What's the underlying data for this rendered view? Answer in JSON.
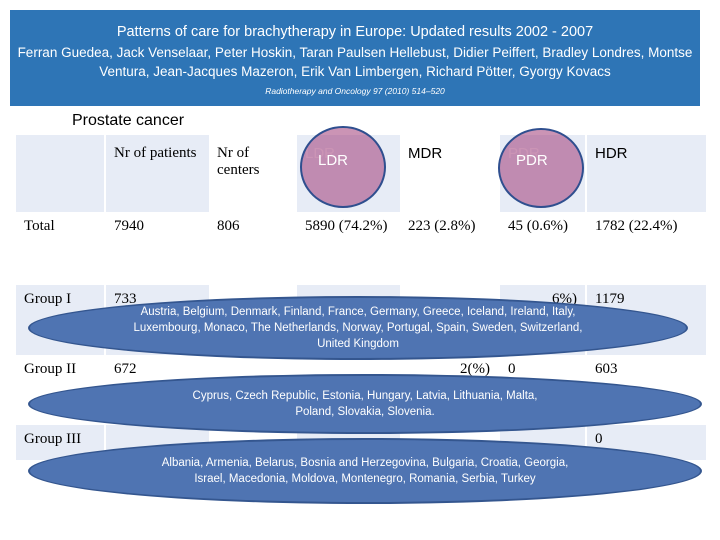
{
  "banner": {
    "title": "Patterns of care for brachytherapy in Europe: Updated results 2002 - 2007",
    "authors": "Ferran Guedea, Jack Venselaar, Peter Hoskin, Taran Paulsen Hellebust, Didier Peiffert, Bradley Londres, Montse Ventura, Jean-Jacques Mazeron, Erik Van Limbergen, Richard Pötter, Gyorgy Kovacs",
    "journal": "Radiotherapy and Oncology 97 (2010) 514–520"
  },
  "subtitle": "Prostate cancer",
  "table": {
    "headers": [
      "",
      "Nr of patients",
      "Nr of centers",
      "LDR",
      "MDR",
      "PDR",
      "HDR"
    ],
    "rows": [
      [
        "Total",
        "7940",
        "806",
        "5890 (74.2%)",
        "223 (2.8%)",
        "45 (0.6%)",
        "1782 (22.4%)"
      ],
      [
        "Group I",
        "733",
        "",
        "",
        "",
        "6%)",
        "1179"
      ],
      [
        "Group II",
        "672",
        "",
        "",
        "2(%)",
        "0",
        "603"
      ],
      [
        "Group III",
        "",
        "",
        "",
        "",
        "",
        "0"
      ]
    ]
  },
  "ovals": {
    "group1": "Austria, Belgium, Denmark, Finland, France, Germany, Greece, Iceland, Ireland, Italy, Luxembourg, Monaco, The Netherlands, Norway, Portugal, Spain, Sweden, Switzerland, United Kingdom",
    "group2": "Cyprus, Czech Republic, Estonia, Hungary, Latvia, Lithuania, Malta, Poland, Slovakia, Slovenia.",
    "group3": "Albania, Armenia, Belarus, Bosnia and Herzegovina, Bulgaria, Croatia, Georgia, Israel, Macedonia, Moldova, Montenegro, Romania, Serbia, Turkey"
  },
  "colors": {
    "banner": "#2e75b6",
    "table_band": "#e7ecf6",
    "oval": "#4f74b2",
    "highlight": "#a03c78"
  }
}
